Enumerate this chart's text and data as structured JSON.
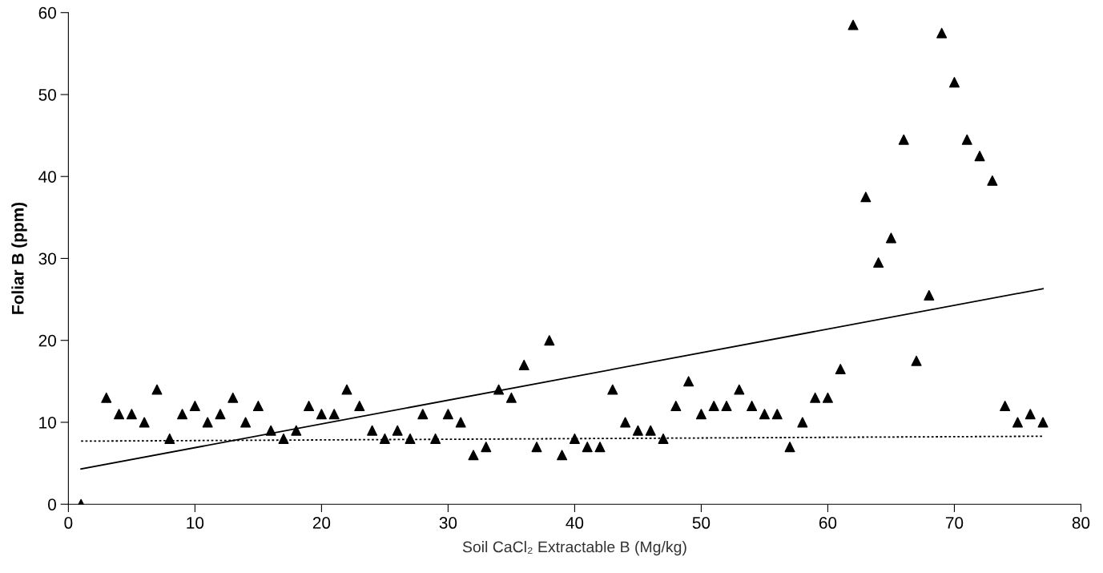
{
  "chart_data": {
    "type": "scatter",
    "xlabel": "Soil CaCl₂ Extractable B (Mg/kg)",
    "ylabel": "Foliar B (ppm)",
    "xlim": [
      0,
      80
    ],
    "ylim": [
      0,
      60
    ],
    "xticks": [
      0,
      10,
      20,
      30,
      40,
      50,
      60,
      70,
      80
    ],
    "yticks": [
      0,
      10,
      20,
      30,
      40,
      50,
      60
    ],
    "grid": false,
    "legend": false,
    "series": [
      {
        "marker": "triangle",
        "color": "#000000",
        "x": [
          1,
          3,
          4,
          5,
          6,
          7,
          8,
          9,
          10,
          11,
          12,
          13,
          14,
          15,
          16,
          17,
          18,
          19,
          20,
          21,
          22,
          23,
          24,
          25,
          26,
          27,
          28,
          29,
          30,
          31,
          32,
          33,
          34,
          35,
          36,
          37,
          38,
          39,
          40,
          41,
          42,
          43,
          44,
          45,
          46,
          47,
          48,
          49,
          50,
          51,
          52,
          53,
          54,
          55,
          56,
          57,
          58,
          59,
          60,
          61,
          62,
          63,
          64,
          65,
          66,
          67,
          68,
          69,
          70,
          71,
          72,
          73,
          74,
          75,
          76,
          77
        ],
        "values": [
          0,
          13,
          11,
          11,
          10,
          14,
          8,
          11,
          12,
          10,
          11,
          13,
          10,
          12,
          9,
          8,
          9,
          12,
          11,
          11,
          14,
          12,
          9,
          8,
          9,
          8,
          11,
          8,
          11,
          10,
          6,
          7,
          14,
          13,
          17,
          7,
          20,
          6,
          8,
          7,
          7,
          14,
          10,
          9,
          9,
          8,
          12,
          15,
          11,
          12,
          12,
          14,
          12,
          11,
          11,
          7,
          10,
          13,
          13,
          16.5,
          58.5,
          37.5,
          29.5,
          32.5,
          44.5,
          17.5,
          25.5,
          57.5,
          51.5,
          44.5,
          42.5,
          39.5,
          12,
          10,
          11,
          10
        ]
      },
      {
        "type": "line",
        "color": "#000000",
        "line_style": "solid",
        "x": [
          1,
          77
        ],
        "values": [
          4.3,
          26.3
        ]
      },
      {
        "type": "line",
        "color": "#000000",
        "line_style": "dotted",
        "x": [
          1,
          77
        ],
        "values": [
          7.7,
          8.3
        ]
      }
    ]
  }
}
